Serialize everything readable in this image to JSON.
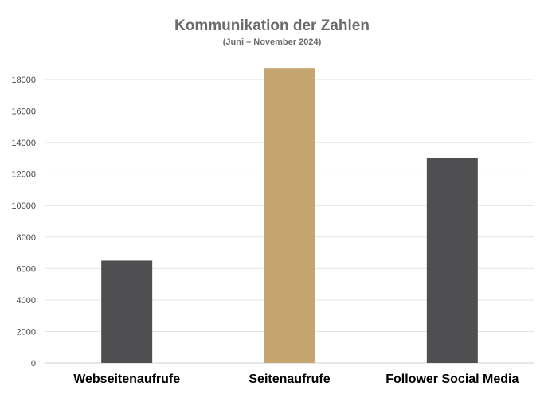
{
  "chart_data": {
    "type": "bar",
    "title": "Kommunikation der Zahlen",
    "subtitle": "(Juni – November 2024)",
    "xlabel": "",
    "ylabel": "",
    "categories": [
      "Webseitenaufrufe",
      "Seitenaufrufe",
      "Follower Social Media"
    ],
    "values": [
      6500,
      18700,
      13000
    ],
    "bar_colors": [
      "#4f4f51",
      "#c5a671",
      "#4f4f51"
    ],
    "ylim": [
      0,
      18000
    ],
    "yticks": [
      0,
      2000,
      4000,
      6000,
      8000,
      10000,
      12000,
      14000,
      16000,
      18000
    ],
    "grid": true,
    "legend": "none"
  }
}
